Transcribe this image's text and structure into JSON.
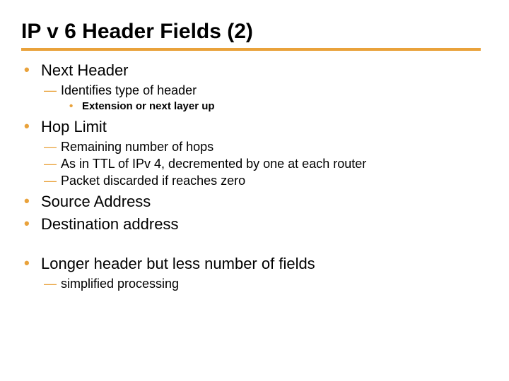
{
  "colors": {
    "accent": "#e9a23b",
    "text": "#000000",
    "background": "#ffffff"
  },
  "typography": {
    "title_fontsize": 30,
    "title_weight": "900",
    "title_family": "Arial Black",
    "l1_fontsize": 22,
    "l2_fontsize": 18,
    "l3_fontsize": 15,
    "l3_weight": "bold"
  },
  "markers": {
    "l1": "•",
    "l2": "—",
    "l3": "•"
  },
  "title": "IP v 6 Header Fields (2)",
  "items": [
    {
      "text": "Next Header",
      "children": [
        {
          "text": "Identifies type of header",
          "children": [
            {
              "text": "Extension or next layer up"
            }
          ]
        }
      ]
    },
    {
      "text": "Hop Limit",
      "children": [
        {
          "text": "Remaining number of hops"
        },
        {
          "text": "As in TTL of IPv 4, decremented by one at each router"
        },
        {
          "text": "Packet discarded if reaches zero"
        }
      ]
    },
    {
      "text": "Source Address"
    },
    {
      "text": "Destination address"
    },
    {
      "gap": true
    },
    {
      "text": "Longer header but less number of fields",
      "children": [
        {
          "text": "simplified processing"
        }
      ]
    }
  ]
}
